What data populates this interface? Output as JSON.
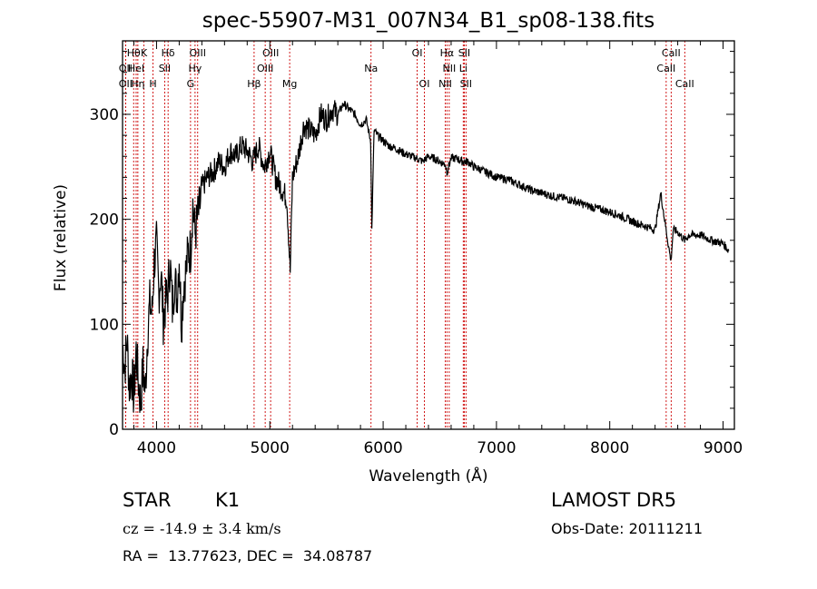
{
  "chart_data": {
    "type": "line",
    "title": "spec-55907-M31_007N34_B1_sp08-138.fits",
    "xlabel": "Wavelength (Å)",
    "ylabel": "Flux (relative)",
    "xlim": [
      3700,
      9100
    ],
    "ylim": [
      0,
      370
    ],
    "xticks": [
      4000,
      5000,
      6000,
      7000,
      8000,
      9000
    ],
    "yticks": [
      0,
      100,
      200,
      300
    ],
    "grid": false,
    "series": [
      {
        "x": [
          3700,
          3720,
          3740,
          3760,
          3780,
          3800,
          3820,
          3840,
          3860,
          3880,
          3900,
          3920,
          3940,
          3960,
          3980,
          4000,
          4020,
          4040,
          4060,
          4080,
          4100,
          4120,
          4140,
          4160,
          4180,
          4200,
          4220,
          4240,
          4260,
          4280,
          4300,
          4320,
          4340,
          4360,
          4380,
          4400,
          4450,
          4500,
          4550,
          4600,
          4650,
          4700,
          4750,
          4800,
          4850,
          4900,
          4950,
          5000,
          5050,
          5100,
          5150,
          5180,
          5200,
          5250,
          5300,
          5350,
          5400,
          5450,
          5500,
          5550,
          5600,
          5650,
          5700,
          5750,
          5800,
          5850,
          5890,
          5900,
          5920,
          5950,
          6000,
          6050,
          6100,
          6150,
          6200,
          6250,
          6300,
          6350,
          6400,
          6450,
          6500,
          6550,
          6563,
          6600,
          6650,
          6700,
          6750,
          6800,
          6850,
          6900,
          6950,
          7000,
          7100,
          7200,
          7300,
          7400,
          7500,
          7600,
          7700,
          7800,
          7900,
          8000,
          8100,
          8200,
          8300,
          8400,
          8450,
          8500,
          8540,
          8560,
          8600,
          8662,
          8700,
          8800,
          8900,
          9000,
          9050
        ],
        "y": [
          80,
          60,
          85,
          40,
          55,
          30,
          75,
          45,
          25,
          60,
          35,
          90,
          120,
          110,
          160,
          175,
          130,
          150,
          105,
          120,
          130,
          160,
          115,
          145,
          125,
          165,
          100,
          140,
          150,
          170,
          170,
          215,
          185,
          200,
          210,
          230,
          240,
          245,
          255,
          250,
          265,
          260,
          270,
          265,
          255,
          270,
          250,
          265,
          240,
          230,
          220,
          150,
          240,
          260,
          290,
          285,
          280,
          300,
          295,
          305,
          300,
          310,
          305,
          300,
          290,
          295,
          275,
          190,
          285,
          280,
          275,
          270,
          268,
          265,
          262,
          260,
          258,
          255,
          260,
          258,
          255,
          252,
          245,
          258,
          258,
          255,
          255,
          250,
          248,
          245,
          243,
          240,
          238,
          233,
          228,
          225,
          222,
          220,
          217,
          213,
          210,
          207,
          203,
          198,
          194,
          190,
          225,
          188,
          160,
          190,
          188,
          180,
          185,
          185,
          180,
          177,
          170
        ]
      }
    ],
    "lines": [
      {
        "wl": 3798,
        "label": "Hθ",
        "row": 0
      },
      {
        "wl": 3727,
        "label": "OII",
        "row": 1
      },
      {
        "wl": 3727,
        "label": "OII",
        "row": 2
      },
      {
        "wl": 3889,
        "label": "K",
        "row": 0
      },
      {
        "wl": 3820,
        "label": "HeI",
        "row": 1
      },
      {
        "wl": 3835,
        "label": "Hη",
        "row": 2
      },
      {
        "wl": 3969,
        "label": "H",
        "row": 2
      },
      {
        "wl": 4102,
        "label": "Hδ",
        "row": 0
      },
      {
        "wl": 4072,
        "label": "SII",
        "row": 1
      },
      {
        "wl": 4300,
        "label": "G",
        "row": 2
      },
      {
        "wl": 4340,
        "label": "Hγ",
        "row": 1
      },
      {
        "wl": 4363,
        "label": "OIII",
        "row": 0
      },
      {
        "wl": 4861,
        "label": "Hβ",
        "row": 2
      },
      {
        "wl": 4959,
        "label": "OIII",
        "row": 1
      },
      {
        "wl": 5007,
        "label": "OIII",
        "row": 0
      },
      {
        "wl": 5175,
        "label": "Mg",
        "row": 2
      },
      {
        "wl": 5893,
        "label": "Na",
        "row": 1
      },
      {
        "wl": 6300,
        "label": "OI",
        "row": 0
      },
      {
        "wl": 6364,
        "label": "OI",
        "row": 2
      },
      {
        "wl": 6548,
        "label": "NII",
        "row": 2
      },
      {
        "wl": 6563,
        "label": "Hα",
        "row": 0
      },
      {
        "wl": 6583,
        "label": "NII",
        "row": 1
      },
      {
        "wl": 6707,
        "label": "Li",
        "row": 1
      },
      {
        "wl": 6716,
        "label": "SII",
        "row": 0
      },
      {
        "wl": 6731,
        "label": "SII",
        "row": 2
      },
      {
        "wl": 8498,
        "label": "CaII",
        "row": 1
      },
      {
        "wl": 8542,
        "label": "CaII",
        "row": 0
      },
      {
        "wl": 8662,
        "label": "CaII",
        "row": 2
      }
    ]
  },
  "info": {
    "class_label": "STAR",
    "subclass": "K1",
    "cz": "cz = -14.9 ± 3.4 km/s",
    "coords": "RA =  13.77623, DEC =  34.08787",
    "survey": "LAMOST DR5",
    "obs_date": "Obs-Date: 20111211"
  },
  "colors": {
    "spectrum": "#000000",
    "lines": "#cc0000"
  }
}
